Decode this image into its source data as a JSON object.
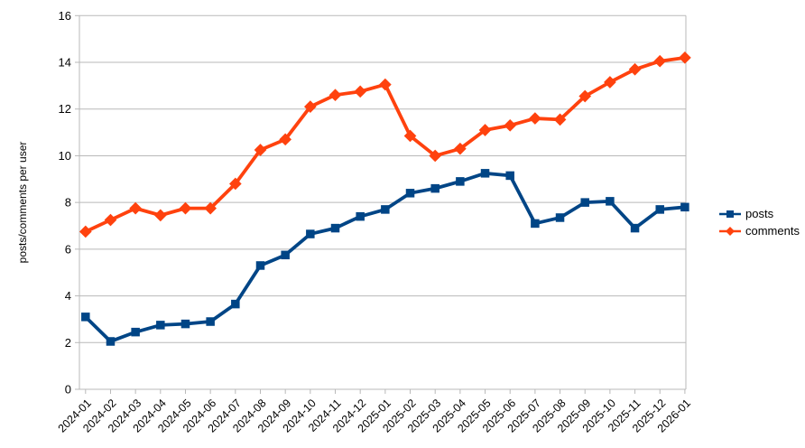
{
  "chart_data": {
    "type": "line",
    "title": "",
    "xlabel": "",
    "ylabel": "posts/comments per user",
    "ylim": [
      0,
      16
    ],
    "y_tick_step": 2,
    "grid": true,
    "legend_position": "right",
    "categories": [
      "2024-01",
      "2024-02",
      "2024-03",
      "2024-04",
      "2024-05",
      "2024-06",
      "2024-07",
      "2024-08",
      "2024-09",
      "2024-10",
      "2024-11",
      "2024-12",
      "2025-01",
      "2025-02",
      "2025-03",
      "2025-04",
      "2025-05",
      "2025-06",
      "2025-07",
      "2025-08",
      "2025-09",
      "2025-10",
      "2025-11",
      "2025-12",
      "2026-01"
    ],
    "series": [
      {
        "name": "posts",
        "color": "#004586",
        "marker": "square",
        "values": [
          3.1,
          2.05,
          2.45,
          2.75,
          2.8,
          2.9,
          3.65,
          5.3,
          5.75,
          6.65,
          6.9,
          7.4,
          7.7,
          8.4,
          8.6,
          8.9,
          9.25,
          9.15,
          7.1,
          7.35,
          8.0,
          8.05,
          6.9,
          7.7,
          7.8
        ]
      },
      {
        "name": "comments",
        "color": "#FF420E",
        "marker": "diamond",
        "values": [
          6.75,
          7.25,
          7.75,
          7.45,
          7.75,
          7.75,
          8.8,
          10.25,
          10.7,
          12.1,
          12.6,
          12.75,
          13.05,
          10.85,
          10.0,
          10.3,
          11.1,
          11.3,
          11.6,
          11.55,
          12.55,
          13.15,
          13.7,
          14.05,
          14.2
        ]
      }
    ],
    "y_tick_labels": [
      "0",
      "2",
      "4",
      "6",
      "8",
      "10",
      "12",
      "14",
      "16"
    ]
  },
  "colors": {
    "background": "#FFFFFF",
    "grid": "#B9B9B9",
    "axis": "#B9B9B9",
    "text": "#000000"
  }
}
